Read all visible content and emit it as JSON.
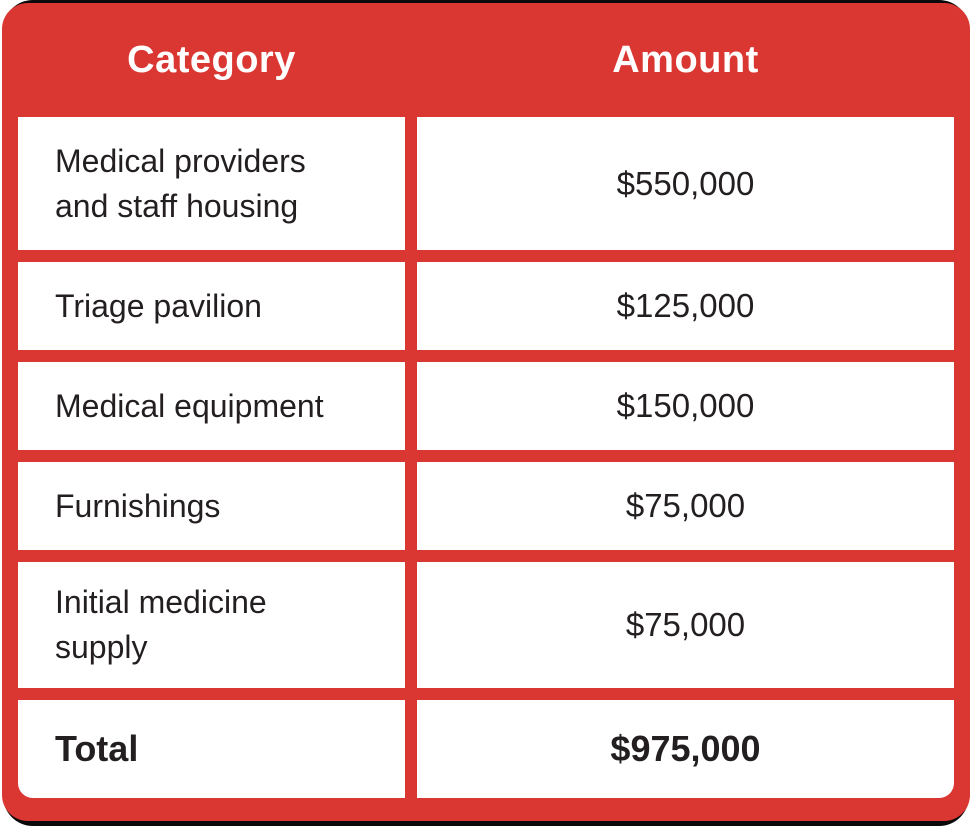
{
  "colors": {
    "table_red": "#db3732",
    "frame_black": "#0a0a0a",
    "cell_white": "#ffffff",
    "text_dark": "#231f20",
    "header_text": "#ffffff"
  },
  "table": {
    "headers": {
      "category": "Category",
      "amount": "Amount"
    },
    "rows": [
      {
        "category": "Medical providers and staff housing",
        "amount": "$550,000"
      },
      {
        "category": "Triage pavilion",
        "amount": "$125,000"
      },
      {
        "category": "Medical equipment",
        "amount": "$150,000"
      },
      {
        "category": "Furnishings",
        "amount": "$75,000"
      },
      {
        "category": "Initial medicine supply",
        "amount": "$75,000"
      }
    ],
    "total": {
      "label": "Total",
      "amount": "$975,000"
    }
  },
  "chart_data": {
    "type": "table",
    "columns": [
      "Category",
      "Amount"
    ],
    "rows": [
      [
        "Medical providers and staff housing",
        550000
      ],
      [
        "Triage pavilion",
        125000
      ],
      [
        "Medical equipment",
        150000
      ],
      [
        "Furnishings",
        75000
      ],
      [
        "Initial medicine supply",
        75000
      ]
    ],
    "total_row": [
      "Total",
      975000
    ],
    "currency": "USD",
    "notes": "Budget allocation table; red grid background, white cells, bold total row"
  }
}
